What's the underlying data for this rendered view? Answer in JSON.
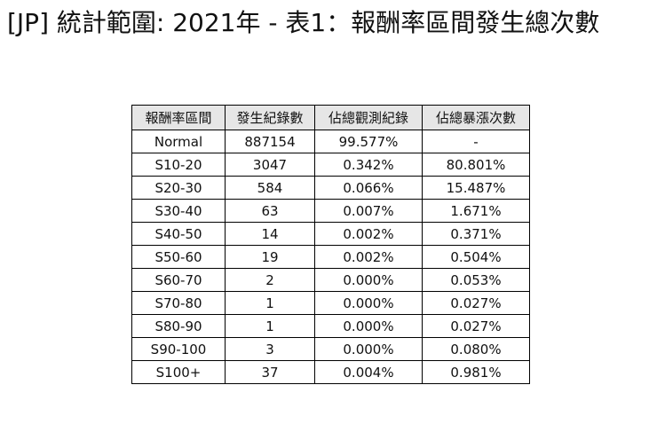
{
  "page": {
    "title": "[JP] 統計範圍: 2021年 - 表1：報酬率區間發生總次數"
  },
  "chart_data": {
    "type": "table",
    "title": "[JP] 統計範圍: 2021年 - 表1：報酬率區間發生總次數",
    "columns": [
      "報酬率區間",
      "發生紀錄數",
      "佔總觀測紀錄",
      "佔總暴漲次數"
    ],
    "rows": [
      [
        "Normal",
        "887154",
        "99.577%",
        "-"
      ],
      [
        "S10-20",
        "3047",
        "0.342%",
        "80.801%"
      ],
      [
        "S20-30",
        "584",
        "0.066%",
        "15.487%"
      ],
      [
        "S30-40",
        "63",
        "0.007%",
        "1.671%"
      ],
      [
        "S40-50",
        "14",
        "0.002%",
        "0.371%"
      ],
      [
        "S50-60",
        "19",
        "0.002%",
        "0.504%"
      ],
      [
        "S60-70",
        "2",
        "0.000%",
        "0.053%"
      ],
      [
        "S70-80",
        "1",
        "0.000%",
        "0.027%"
      ],
      [
        "S80-90",
        "1",
        "0.000%",
        "0.027%"
      ],
      [
        "S90-100",
        "3",
        "0.000%",
        "0.080%"
      ],
      [
        "S100+",
        "37",
        "0.004%",
        "0.981%"
      ]
    ],
    "layout": {
      "header_background": "#e6e6e6",
      "border_color": "#000000",
      "grid": true,
      "legend": "none"
    }
  }
}
